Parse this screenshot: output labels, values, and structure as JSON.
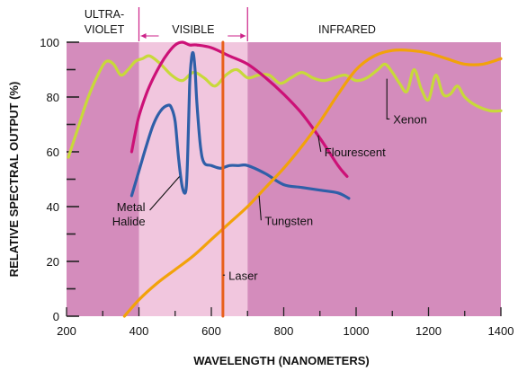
{
  "chart_data": {
    "type": "line",
    "xlabel": "WAVELENGTH (NANOMETERS)",
    "ylabel": "RELATIVE SPECTRAL OUTPUT (%)",
    "xlim": [
      200,
      1400
    ],
    "ylim": [
      0,
      100
    ],
    "x_ticks": [
      "200",
      "400",
      "600",
      "800",
      "1000",
      "1200",
      "1400"
    ],
    "y_ticks": [
      "0",
      "20",
      "40",
      "60",
      "80",
      "100"
    ],
    "regions": [
      {
        "label_lines": [
          "ULTRA-",
          "VIOLET"
        ],
        "range": [
          200,
          400
        ],
        "color": "#d48cbc"
      },
      {
        "label": "VISIBLE",
        "range": [
          400,
          700
        ],
        "color": "#f1c6de"
      },
      {
        "label": "INFRARED",
        "range": [
          700,
          1400
        ],
        "color": "#d48cbc"
      }
    ],
    "series": [
      {
        "name": "Xenon",
        "color": "#c8d93a",
        "x": [
          205,
          230,
          260,
          290,
          310,
          330,
          350,
          370,
          390,
          410,
          430,
          460,
          490,
          520,
          550,
          580,
          610,
          640,
          670,
          700,
          730,
          760,
          790,
          820,
          850,
          880,
          910,
          940,
          970,
          1000,
          1030,
          1060,
          1080,
          1100,
          1120,
          1140,
          1160,
          1180,
          1200,
          1220,
          1240,
          1260,
          1280,
          1300,
          1330,
          1370,
          1400
        ],
        "values": [
          58,
          68,
          80,
          89,
          93,
          92,
          88,
          90,
          93,
          94,
          95,
          92,
          88,
          86,
          89,
          87,
          84,
          88,
          90,
          87,
          88,
          88,
          85,
          87,
          89,
          87,
          86,
          87,
          88,
          86,
          87,
          90,
          92,
          89,
          85,
          82,
          90,
          83,
          79,
          88,
          81,
          81,
          84,
          80,
          77,
          75,
          75
        ]
      },
      {
        "name": "Flourescent",
        "color": "#cc1177",
        "x": [
          380,
          390,
          400,
          420,
          440,
          460,
          480,
          500,
          520,
          540,
          560,
          600,
          650,
          700,
          750,
          800,
          850,
          900,
          950,
          975
        ],
        "values": [
          60,
          67,
          73,
          81,
          87,
          92,
          96,
          99,
          100,
          99,
          99,
          98,
          95,
          92,
          87,
          81,
          74,
          65,
          55,
          51
        ]
      },
      {
        "name": "Metal Halide",
        "color": "#2f5fa8",
        "x": [
          380,
          400,
          420,
          440,
          460,
          480,
          490,
          500,
          510,
          520,
          530,
          535,
          540,
          545,
          550,
          555,
          560,
          570,
          580,
          600,
          625,
          650,
          675,
          700,
          750,
          800,
          850,
          900,
          950,
          980
        ],
        "values": [
          44,
          53,
          62,
          70,
          75,
          77,
          76,
          71,
          57,
          47,
          46,
          60,
          84,
          94,
          96,
          90,
          78,
          62,
          56,
          55,
          54,
          55,
          55,
          55,
          52,
          48,
          47,
          46,
          45,
          43
        ]
      },
      {
        "name": "Tungsten",
        "color": "#f2a20a",
        "x": [
          360,
          400,
          450,
          500,
          550,
          600,
          650,
          700,
          750,
          800,
          850,
          900,
          950,
          1000,
          1050,
          1100,
          1150,
          1200,
          1250,
          1300,
          1350,
          1400
        ],
        "values": [
          0,
          6,
          12,
          17,
          22,
          28,
          34,
          40,
          47,
          54,
          62,
          71,
          81,
          90,
          95,
          97,
          97,
          96,
          94,
          92,
          92,
          94
        ]
      },
      {
        "name": "Laser",
        "color": "#e8601c",
        "x": [
          632,
          632
        ],
        "values": [
          0,
          100
        ]
      }
    ],
    "annotations": [
      {
        "text": "Xenon",
        "lines": [
          "Xenon"
        ],
        "series": "Xenon",
        "at": [
          1085,
          88
        ],
        "text_at": [
          1100,
          72
        ]
      },
      {
        "text": "Flourescent",
        "lines": [
          "Flourescent"
        ],
        "series": "Flourescent",
        "at": [
          895,
          66
        ],
        "text_at": [
          910,
          60
        ]
      },
      {
        "text": "Metal Halide",
        "lines": [
          "Metal",
          "Halide"
        ],
        "series": "Metal Halide",
        "at": [
          512,
          51
        ],
        "text_at": [
          425,
          40
        ]
      },
      {
        "text": "Tungsten",
        "lines": [
          "Tungsten"
        ],
        "series": "Tungsten",
        "at": [
          732,
          44
        ],
        "text_at": [
          745,
          35
        ]
      },
      {
        "text": "Laser",
        "lines": [
          "Laser"
        ],
        "series": "Laser",
        "at": [
          632,
          15
        ],
        "text_at": [
          645,
          15
        ]
      }
    ]
  }
}
